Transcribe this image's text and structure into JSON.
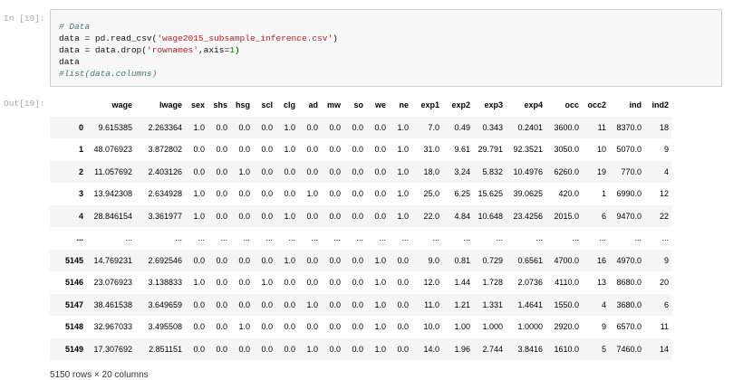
{
  "cell": {
    "in_prompt": "In [19]:",
    "out_prompt": "Out[19]:",
    "code": {
      "line1": "# Data",
      "line2_a": "data = pd.read_csv(",
      "line2_b": "'wage2015_subsample_inference.csv'",
      "line2_c": ")",
      "line3_a": "data = data.drop(",
      "line3_b": "'rownames'",
      "line3_c": ",axis=",
      "line3_d": "1",
      "line3_e": ")",
      "line4": "data",
      "line5": "#list(data.columns)"
    }
  },
  "table": {
    "columns": [
      "",
      "wage",
      "lwage",
      "sex",
      "shs",
      "hsg",
      "scl",
      "clg",
      "ad",
      "mw",
      "so",
      "we",
      "ne",
      "exp1",
      "exp2",
      "exp3",
      "exp4",
      "occ",
      "occ2",
      "ind",
      "ind2"
    ],
    "rows": [
      [
        "0",
        "9.615385",
        "2.263364",
        "1.0",
        "0.0",
        "0.0",
        "0.0",
        "1.0",
        "0.0",
        "0.0",
        "0.0",
        "0.0",
        "1.0",
        "7.0",
        "0.49",
        "0.343",
        "0.2401",
        "3600.0",
        "11",
        "8370.0",
        "18"
      ],
      [
        "1",
        "48.076923",
        "3.872802",
        "0.0",
        "0.0",
        "0.0",
        "0.0",
        "1.0",
        "0.0",
        "0.0",
        "0.0",
        "0.0",
        "1.0",
        "31.0",
        "9.61",
        "29.791",
        "92.3521",
        "3050.0",
        "10",
        "5070.0",
        "9"
      ],
      [
        "2",
        "11.057692",
        "2.403126",
        "0.0",
        "0.0",
        "1.0",
        "0.0",
        "0.0",
        "0.0",
        "0.0",
        "0.0",
        "0.0",
        "1.0",
        "18.0",
        "3.24",
        "5.832",
        "10.4976",
        "6260.0",
        "19",
        "770.0",
        "4"
      ],
      [
        "3",
        "13.942308",
        "2.634928",
        "1.0",
        "0.0",
        "0.0",
        "0.0",
        "0.0",
        "1.0",
        "0.0",
        "0.0",
        "0.0",
        "1.0",
        "25.0",
        "6.25",
        "15.625",
        "39.0625",
        "420.0",
        "1",
        "6990.0",
        "12"
      ],
      [
        "4",
        "28.846154",
        "3.361977",
        "1.0",
        "0.0",
        "0.0",
        "0.0",
        "1.0",
        "0.0",
        "0.0",
        "0.0",
        "0.0",
        "1.0",
        "22.0",
        "4.84",
        "10.648",
        "23.4256",
        "2015.0",
        "6",
        "9470.0",
        "22"
      ],
      [
        "...",
        "...",
        "...",
        "...",
        "...",
        "...",
        "...",
        "...",
        "...",
        "...",
        "...",
        "...",
        "...",
        "...",
        "...",
        "...",
        "...",
        "...",
        "...",
        "...",
        "..."
      ],
      [
        "5145",
        "14.769231",
        "2.692546",
        "0.0",
        "0.0",
        "0.0",
        "0.0",
        "1.0",
        "0.0",
        "0.0",
        "0.0",
        "1.0",
        "0.0",
        "9.0",
        "0.81",
        "0.729",
        "0.6561",
        "4700.0",
        "16",
        "4970.0",
        "9"
      ],
      [
        "5146",
        "23.076923",
        "3.138833",
        "1.0",
        "0.0",
        "0.0",
        "1.0",
        "0.0",
        "0.0",
        "0.0",
        "0.0",
        "1.0",
        "0.0",
        "12.0",
        "1.44",
        "1.728",
        "2.0736",
        "4110.0",
        "13",
        "8680.0",
        "20"
      ],
      [
        "5147",
        "38.461538",
        "3.649659",
        "0.0",
        "0.0",
        "0.0",
        "0.0",
        "0.0",
        "1.0",
        "0.0",
        "0.0",
        "1.0",
        "0.0",
        "11.0",
        "1.21",
        "1.331",
        "1.4641",
        "1550.0",
        "4",
        "3680.0",
        "6"
      ],
      [
        "5148",
        "32.967033",
        "3.495508",
        "0.0",
        "0.0",
        "1.0",
        "0.0",
        "0.0",
        "0.0",
        "0.0",
        "0.0",
        "1.0",
        "0.0",
        "10.0",
        "1.00",
        "1.000",
        "1.0000",
        "2920.0",
        "9",
        "6570.0",
        "11"
      ],
      [
        "5149",
        "17.307692",
        "2.851151",
        "0.0",
        "0.0",
        "0.0",
        "0.0",
        "0.0",
        "1.0",
        "0.0",
        "0.0",
        "1.0",
        "0.0",
        "14.0",
        "1.96",
        "2.744",
        "3.8416",
        "1610.0",
        "5",
        "7460.0",
        "14"
      ]
    ],
    "summary": "5150 rows × 20 columns"
  }
}
